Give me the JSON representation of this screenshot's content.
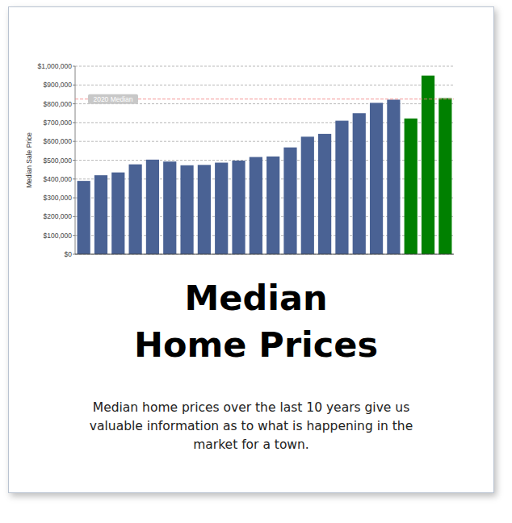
{
  "chart_data": {
    "type": "bar",
    "title": "Median\nHome Prices",
    "subtitle": "Median home prices over the last 10 years give us valuable information as to what is happening in the market for a town.",
    "y_label": "Median Sale Price",
    "categories": [
      null,
      null,
      null,
      null,
      null,
      null,
      null,
      null,
      null,
      null,
      null,
      null,
      null,
      null,
      null,
      null,
      null,
      null,
      null,
      null,
      null,
      null
    ],
    "values": [
      390000,
      420000,
      435000,
      478000,
      503000,
      493000,
      473000,
      475000,
      487000,
      498000,
      517000,
      520000,
      568000,
      625000,
      640000,
      710000,
      750000,
      805000,
      822000,
      722000,
      950000,
      830000
    ],
    "colors": [
      "#4a6294",
      "#4a6294",
      "#4a6294",
      "#4a6294",
      "#4a6294",
      "#4a6294",
      "#4a6294",
      "#4a6294",
      "#4a6294",
      "#4a6294",
      "#4a6294",
      "#4a6294",
      "#4a6294",
      "#4a6294",
      "#4a6294",
      "#4a6294",
      "#4a6294",
      "#4a6294",
      "#4a6294",
      "#008000",
      "#008000",
      "#008000"
    ],
    "annotations": [
      {
        "text": "2020 Median",
        "value": 825000
      }
    ],
    "ylim": [
      0,
      1000000
    ],
    "yticks": [
      {
        "value": 0,
        "label": "$0"
      },
      {
        "value": 100000,
        "label": "$100,000"
      },
      {
        "value": 200000,
        "label": "$200,000"
      },
      {
        "value": 300000,
        "label": "$300,000"
      },
      {
        "value": 400000,
        "label": "$400,000"
      },
      {
        "value": 500000,
        "label": "$500,000"
      },
      {
        "value": 600000,
        "label": "$600,000"
      },
      {
        "value": 700000,
        "label": "$700,000"
      },
      {
        "value": 800000,
        "label": "$800,000"
      },
      {
        "value": 900000,
        "label": "$900,000"
      },
      {
        "value": 1000000,
        "label": "$1,000,000"
      }
    ],
    "grid": true
  }
}
